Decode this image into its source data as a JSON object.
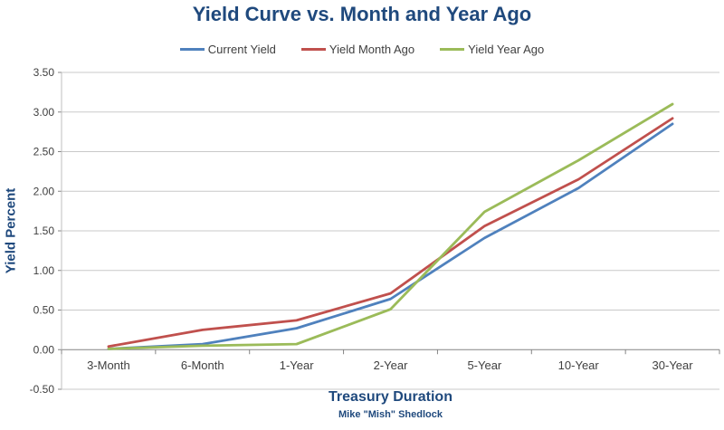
{
  "chart_data": {
    "type": "line",
    "title": "Yield Curve vs. Month and Year Ago",
    "xlabel": "Treasury Duration",
    "ylabel": "Yield Percent",
    "attribution": "Mike \"Mish\" Shedlock",
    "categories": [
      "3-Month",
      "6-Month",
      "1-Year",
      "2-Year",
      "5-Year",
      "10-Year",
      "30-Year"
    ],
    "series": [
      {
        "name": "Current Yield",
        "color": "#4F81BD",
        "values": [
          0.01,
          0.07,
          0.27,
          0.64,
          1.41,
          2.04,
          2.85
        ]
      },
      {
        "name": "Yield Month Ago",
        "color": "#C0504D",
        "values": [
          0.04,
          0.25,
          0.37,
          0.71,
          1.56,
          2.15,
          2.92
        ]
      },
      {
        "name": "Yield Year Ago",
        "color": "#9BBB59",
        "values": [
          0.01,
          0.05,
          0.07,
          0.51,
          1.74,
          2.39,
          3.1
        ]
      }
    ],
    "ylim": [
      -0.5,
      3.5
    ],
    "ytick_step": 0.5,
    "ytick_labels": [
      "3.50",
      "3.00",
      "2.50",
      "2.00",
      "1.50",
      "1.00",
      "0.50",
      "0.00",
      "-0.50"
    ],
    "grid": true,
    "legend_position": "top",
    "colors": {
      "title_text": "#1F497D",
      "tick_text": "#3F3F3F",
      "gridline": "#C9C9C9",
      "zero_axis": "#848484",
      "axis_line": "#BFBFBF"
    }
  }
}
